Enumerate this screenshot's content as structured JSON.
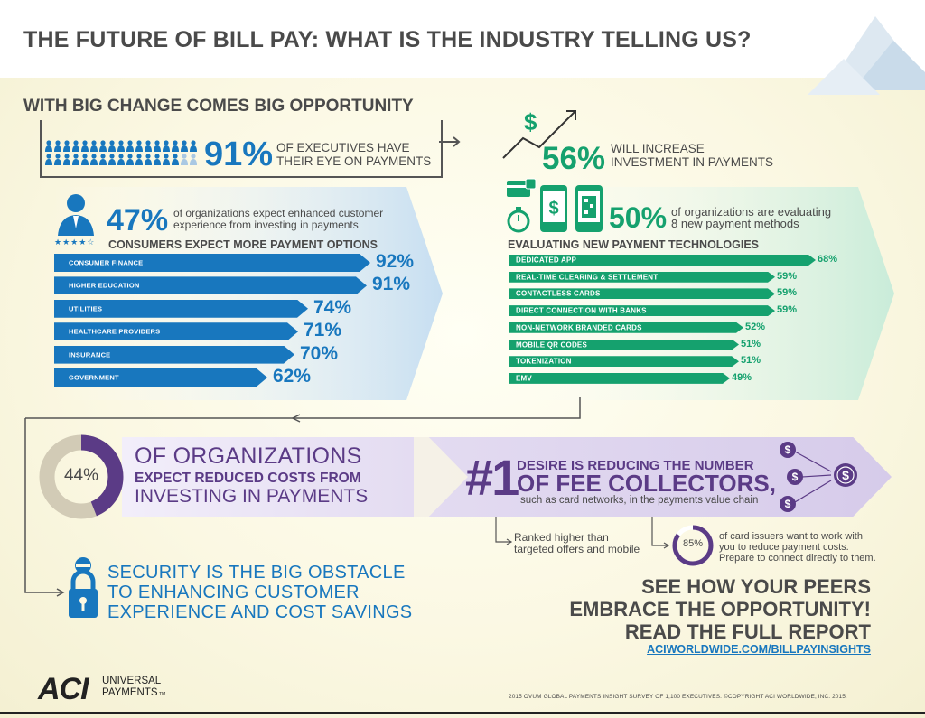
{
  "title": "THE FUTURE OF BILL PAY: WHAT IS THE INDUSTRY TELLING US?",
  "subtitle": "WITH BIG CHANGE COMES BIG OPPORTUNITY",
  "executives": {
    "pct": "91%",
    "line1": "OF EXECUTIVES HAVE",
    "line2": "THEIR EYE ON PAYMENTS"
  },
  "investment": {
    "pct": "56%",
    "line1": "WILL INCREASE",
    "line2": "INVESTMENT IN PAYMENTS"
  },
  "customer_experience": {
    "pct": "47%",
    "line1": "of organizations expect enhanced customer",
    "line2": "experience from investing in payments"
  },
  "evaluating": {
    "pct": "50%",
    "line1": "of organizations are evaluating",
    "line2": "8 new payment methods"
  },
  "consumers": {
    "heading": "CONSUMERS EXPECT MORE PAYMENT OPTIONS",
    "items": [
      {
        "label": "CONSUMER FINANCE",
        "value": "92%"
      },
      {
        "label": "HIGHER EDUCATION",
        "value": "91%"
      },
      {
        "label": "UTILITIES",
        "value": "74%"
      },
      {
        "label": "HEALTHCARE PROVIDERS",
        "value": "71%"
      },
      {
        "label": "INSURANCE",
        "value": "70%"
      },
      {
        "label": "GOVERNMENT",
        "value": "62%"
      }
    ]
  },
  "technologies": {
    "heading": "EVALUATING NEW PAYMENT TECHNOLOGIES",
    "items": [
      {
        "label": "DEDICATED APP",
        "value": "68%"
      },
      {
        "label": "REAL-TIME CLEARING & SETTLEMENT",
        "value": "59%"
      },
      {
        "label": "CONTACTLESS CARDS",
        "value": "59%"
      },
      {
        "label": "DIRECT CONNECTION WITH BANKS",
        "value": "59%"
      },
      {
        "label": "NON-NETWORK BRANDED CARDS",
        "value": "52%"
      },
      {
        "label": "MOBILE QR CODES",
        "value": "51%"
      },
      {
        "label": "TOKENIZATION",
        "value": "51%"
      },
      {
        "label": "EMV",
        "value": "49%"
      }
    ]
  },
  "costs": {
    "donut": "44%",
    "donut_fraction": 0.44,
    "line1": "OF ORGANIZATIONS",
    "line2": "EXPECT REDUCED COSTS FROM",
    "line3": "INVESTING IN PAYMENTS"
  },
  "fee": {
    "rank": "#1",
    "line1": "DESIRE IS REDUCING THE NUMBER",
    "line2": "OF FEE COLLECTORS,",
    "line3": "such as card networks, in the payments value chain"
  },
  "ranked": {
    "line1": "Ranked higher than",
    "line2": "targeted offers and mobile"
  },
  "issuers": {
    "pct": "85%",
    "fraction": 0.85,
    "line1": "of card issuers want to work with",
    "line2": "you to reduce payment costs.",
    "line3": "Prepare to connect directly to them."
  },
  "security": {
    "line1": "SECURITY IS THE BIG OBSTACLE",
    "line2": "TO ENHANCING CUSTOMER",
    "line3": "EXPERIENCE AND COST SAVINGS"
  },
  "cta": {
    "line1": "SEE HOW YOUR PEERS",
    "line2": "EMBRACE THE OPPORTUNITY!",
    "line3": "READ THE FULL REPORT",
    "link": "ACIWORLDWIDE.COM/BILLPAYINSIGHTS"
  },
  "logo": {
    "brand": "ACI",
    "line1": "UNIVERSAL",
    "line2": "PAYMENTS",
    "tm": "TM"
  },
  "footer": "2015 OVUM GLOBAL PAYMENTS INSIGHT SURVEY OF 1,100 EXECUTIVES. ©COPYRIGHT ACI WORLDWIDE, INC. 2015.",
  "icons": [
    "people-icon",
    "trend-arrow-icon",
    "dollar-icon",
    "person-icon",
    "stars-icon",
    "card-icon",
    "stopwatch-icon",
    "mobile-dollar-icon",
    "mobile-qr-icon",
    "lock-icon",
    "coin-icon"
  ],
  "colors": {
    "blue": "#1877be",
    "green": "#15a16e",
    "purple": "#5b3b86",
    "text": "#4a4a4a",
    "background": "#fbf8e3"
  }
}
